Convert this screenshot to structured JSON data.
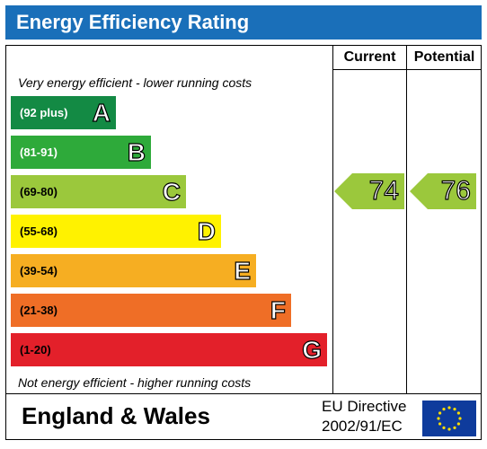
{
  "title": "Energy Efficiency Rating",
  "columns": {
    "current": "Current",
    "potential": "Potential"
  },
  "captions": {
    "top": "Very energy efficient - lower running costs",
    "bottom": "Not energy efficient - higher running costs"
  },
  "bands": [
    {
      "letter": "A",
      "range": "(92 plus)",
      "color": "#138a44"
    },
    {
      "letter": "B",
      "range": "(81-91)",
      "color": "#2eaa3a"
    },
    {
      "letter": "C",
      "range": "(69-80)",
      "color": "#9bc83c"
    },
    {
      "letter": "D",
      "range": "(55-68)",
      "color": "#fff200"
    },
    {
      "letter": "E",
      "range": "(39-54)",
      "color": "#f6ae22"
    },
    {
      "letter": "F",
      "range": "(21-38)",
      "color": "#ef6e26"
    },
    {
      "letter": "G",
      "range": "(1-20)",
      "color": "#e3202a"
    }
  ],
  "ratings": {
    "current": {
      "value": "74",
      "band": "C",
      "color": "#9bc83c"
    },
    "potential": {
      "value": "76",
      "band": "C",
      "color": "#9bc83c"
    }
  },
  "footer": {
    "country": "England & Wales",
    "directive_line1": "EU Directive",
    "directive_line2": "2002/91/EC"
  }
}
